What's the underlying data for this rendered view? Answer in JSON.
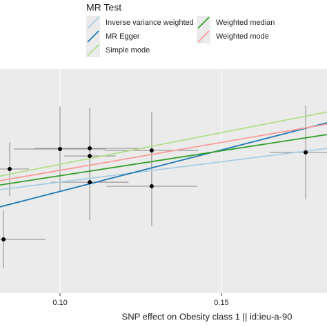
{
  "chart_data": {
    "type": "scatter",
    "xlabel": "SNP effect on Obesity class 1 || id:ieu-a-90",
    "xlim": [
      0.0814,
      0.1827
    ],
    "ylim": [
      0,
      0.1
    ],
    "xticks": [
      {
        "value": 0.1,
        "label": "0.10"
      },
      {
        "value": 0.15,
        "label": "0.15"
      }
    ],
    "grid": true,
    "legend_title": "MR Test",
    "points": {
      "x": [
        0.0844,
        0.1,
        0.1092,
        0.1092,
        0.1092,
        0.1284,
        0.1284,
        0.0825,
        0.1761
      ],
      "y": [
        0.0554,
        0.0643,
        0.0646,
        0.0612,
        0.0495,
        0.0637,
        0.0477,
        0.024,
        0.0628
      ],
      "xerr": [
        0.006,
        0.0143,
        0.017,
        0.008,
        0.012,
        0.0145,
        0.014,
        0.013,
        0.011
      ],
      "yerr": [
        0.012,
        0.019,
        0.018,
        0.01,
        0.017,
        0.017,
        0.0177,
        0.013,
        0.021
      ]
    },
    "series": [
      {
        "name": "Inverse variance weighted",
        "color": "#a6cee3",
        "slope": 0.1816,
        "intercept": 0.0314
      },
      {
        "name": "MR Egger",
        "color": "#1f78b4",
        "slope": 0.37,
        "intercept": 0.0084
      },
      {
        "name": "Simple mode",
        "color": "#b2df8a",
        "slope": 0.282,
        "intercept": 0.0293
      },
      {
        "name": "Weighted median",
        "color": "#33a02c",
        "slope": 0.222,
        "intercept": 0.0302
      },
      {
        "name": "Weighted mode",
        "color": "#fb9a99",
        "slope": 0.249,
        "intercept": 0.0299
      }
    ]
  }
}
